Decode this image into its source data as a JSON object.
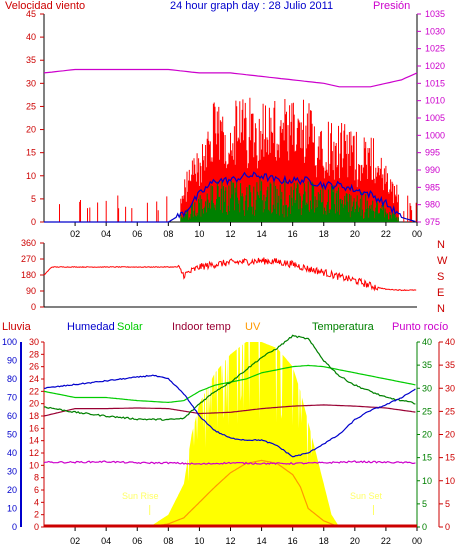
{
  "chart_data": [
    {
      "type": "line",
      "title": "24 hour graph day : 28 Julio 2011",
      "left_label": "Velocidad viento",
      "right_label": "Presión",
      "x_ticks": [
        "02",
        "04",
        "06",
        "08",
        "10",
        "12",
        "14",
        "16",
        "18",
        "20",
        "22",
        "00"
      ],
      "y_left_ticks": [
        "0",
        "5",
        "10",
        "15",
        "20",
        "25",
        "30",
        "35",
        "40",
        "45"
      ],
      "y_left_lim": [
        0,
        45
      ],
      "y_right_ticks": [
        "975",
        "980",
        "985",
        "990",
        "995",
        "1000",
        "1005",
        "1010",
        "1015",
        "1020",
        "1025",
        "1030",
        "1035"
      ],
      "y_right_lim": [
        975,
        1035
      ],
      "x_hours_lim": [
        0,
        24
      ],
      "colors": {
        "gust": "#ff0000",
        "average": "#0000cc",
        "lull": "#008000",
        "pressure": "#cc00cc"
      },
      "series": [
        {
          "key": "pressure",
          "axis": "right",
          "x": [
            0,
            2,
            4,
            6,
            8,
            10,
            12,
            14,
            16,
            18,
            19,
            20,
            21,
            22,
            23,
            24
          ],
          "y": [
            1018,
            1019,
            1019,
            1019,
            1019,
            1018,
            1018,
            1017,
            1016,
            1015,
            1014,
            1014,
            1014,
            1015,
            1016,
            1018
          ]
        },
        {
          "key": "average",
          "axis": "left",
          "x": [
            0,
            2,
            4,
            6,
            8,
            9,
            10,
            11,
            12,
            13,
            14,
            15,
            16,
            17,
            18,
            19,
            20,
            21,
            22,
            23,
            24
          ],
          "y": [
            0,
            0,
            0,
            0,
            0,
            2,
            6,
            9,
            9,
            10,
            10,
            9,
            9,
            9,
            8,
            8,
            7,
            6,
            4,
            1,
            0
          ]
        }
      ]
    },
    {
      "type": "line",
      "left_ticks": [
        "360",
        "270",
        "180",
        "90",
        "0"
      ],
      "y_lim": [
        0,
        360
      ],
      "right_labels": [
        "N",
        "W",
        "S",
        "E",
        "N"
      ],
      "color": "#ff0000",
      "x": [
        0,
        0.5,
        2,
        4,
        6,
        8,
        8.6,
        9,
        10,
        11,
        12,
        13,
        14,
        15,
        16,
        17,
        18,
        19,
        20,
        21,
        22,
        23,
        24
      ],
      "y": [
        180,
        225,
        225,
        225,
        225,
        225,
        225,
        180,
        225,
        240,
        250,
        255,
        260,
        255,
        240,
        215,
        195,
        170,
        150,
        120,
        100,
        95,
        95
      ]
    },
    {
      "type": "line",
      "labels": {
        "rain": "Lluvia",
        "humidity": "Humedad",
        "solar": "Solar",
        "indoor": "Indoor temp",
        "uv": "UV",
        "temperature": "Temperatura",
        "dewpoint": "Punto rocío"
      },
      "annotations": {
        "sun_rise": "Sun Rise",
        "sun_set": "Sun Set"
      },
      "y_humidity_ticks": [
        "0",
        "10",
        "20",
        "30",
        "40",
        "50",
        "60",
        "70",
        "80",
        "90",
        "100"
      ],
      "y_humidity_lim": [
        0,
        100
      ],
      "y_temp_ticks": [
        "0",
        "2",
        "4",
        "6",
        "8",
        "10",
        "12",
        "14",
        "16",
        "18",
        "20",
        "22",
        "24",
        "26",
        "28",
        "30"
      ],
      "y_temp_lim": [
        0,
        30
      ],
      "y_solar_ticks": [
        "0",
        "5",
        "10",
        "15",
        "20",
        "25",
        "30",
        "35",
        "40"
      ],
      "y_solar_lim": [
        0,
        40
      ],
      "colors": {
        "rain": "#0000cc",
        "humidity": "#0000cc",
        "solar": "#00cc00",
        "indoor": "#990033",
        "uv": "#ff9900",
        "uv_fill": "#ffff00",
        "temperature": "#008000",
        "dewpoint": "#cc00cc",
        "solar_fill": "#ffff00"
      },
      "humidity": {
        "x": [
          0,
          2,
          4,
          6,
          7,
          8,
          9,
          10,
          11,
          12,
          13,
          14,
          15,
          16,
          17,
          18,
          19,
          20,
          21,
          22,
          23,
          24
        ],
        "y": [
          75,
          77,
          79,
          81,
          82,
          80,
          72,
          60,
          52,
          48,
          47,
          47,
          44,
          38,
          40,
          45,
          50,
          58,
          63,
          66,
          70,
          75
        ]
      },
      "indoor": {
        "x": [
          0,
          2,
          4,
          6,
          8,
          10,
          12,
          14,
          16,
          18,
          20,
          22,
          24
        ],
        "y": [
          18,
          19.2,
          19.2,
          19.3,
          19.2,
          18.4,
          18.6,
          19.2,
          19.6,
          19.8,
          19.6,
          19.3,
          18.6
        ]
      },
      "temperature": {
        "x": [
          0,
          2,
          4,
          6,
          8,
          9,
          10,
          11,
          12,
          13,
          14,
          15,
          16,
          17,
          18,
          19,
          20,
          21,
          22,
          23,
          24
        ],
        "y": [
          19.5,
          18.6,
          18,
          17.5,
          17.4,
          17.6,
          20,
          22,
          23.5,
          25.5,
          27.5,
          29,
          31,
          30.5,
          27,
          24.5,
          23,
          22,
          21,
          20.5,
          20
        ]
      },
      "solar": {
        "x": [
          0,
          2,
          4,
          6,
          8,
          9,
          10,
          11,
          12,
          13,
          14,
          15,
          16,
          17,
          18,
          20,
          22,
          24
        ],
        "y": [
          22,
          21,
          21,
          20.5,
          20.2,
          20.5,
          22,
          23,
          23.5,
          24,
          25,
          25.5,
          26,
          26.2,
          26,
          25,
          24,
          23
        ]
      },
      "dewpoint": {
        "x": [
          0,
          2,
          4,
          6,
          8,
          10,
          12,
          14,
          16,
          18,
          20,
          22,
          24
        ],
        "y": [
          10.5,
          10.5,
          10.6,
          10.4,
          10.4,
          10.2,
          10.4,
          10.3,
          10.3,
          10.4,
          10.6,
          10.5,
          10.4
        ]
      },
      "solar_area": {
        "x": [
          6.8,
          8,
          9,
          9.5,
          10,
          11,
          12,
          13,
          14,
          15,
          16,
          16.5,
          17,
          18,
          18.5,
          19
        ],
        "y": [
          0,
          2,
          7,
          15,
          20,
          25,
          28,
          30,
          30,
          29,
          26,
          22,
          17,
          7,
          2,
          0
        ]
      },
      "uv_line": {
        "x": [
          6.8,
          8,
          9,
          10,
          11,
          12,
          13,
          14,
          15,
          16,
          16.5,
          17,
          18,
          19
        ],
        "y": [
          0,
          0.5,
          1.5,
          4,
          6.5,
          8.8,
          10.3,
          10.8,
          10.3,
          8.5,
          6.5,
          3,
          1,
          0
        ]
      }
    }
  ]
}
